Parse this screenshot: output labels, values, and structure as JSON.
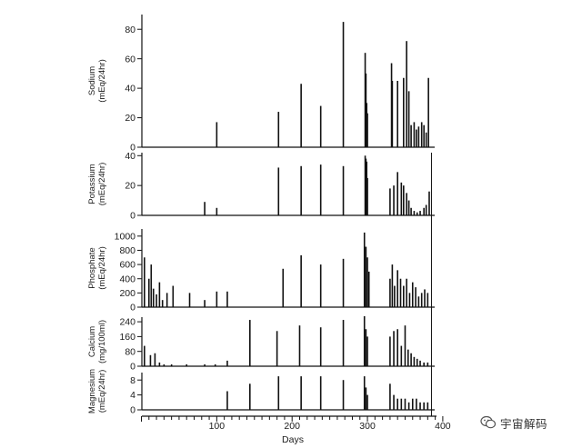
{
  "chart_data": {
    "type": "bar",
    "xlabel": "Days",
    "xlim": [
      0,
      400
    ],
    "x_ticks": [
      100,
      200,
      300,
      400
    ],
    "x_minor_tick_step": 10,
    "color": "#111111",
    "panels": [
      {
        "name": "sodium",
        "ylabel_lines": [
          "Sodium",
          "(mEq/24hr)"
        ],
        "ylim": [
          0,
          90
        ],
        "yticks": [
          0,
          20,
          40,
          60,
          80
        ],
        "x": [
          100,
          182,
          212,
          238,
          268,
          297,
          298,
          299,
          300,
          332,
          333,
          340,
          348,
          352,
          355,
          358,
          362,
          365,
          368,
          372,
          375,
          378,
          381
        ],
        "values": [
          17,
          24,
          43,
          28,
          85,
          64,
          50,
          30,
          23,
          57,
          45,
          45,
          47,
          72,
          38,
          15,
          17,
          12,
          14,
          17,
          15,
          10,
          47
        ]
      },
      {
        "name": "potassium",
        "ylabel_lines": [
          "Potassium",
          "(mEq/24hr)"
        ],
        "ylim": [
          0,
          42
        ],
        "yticks": [
          0,
          20,
          40
        ],
        "x": [
          84,
          100,
          182,
          212,
          238,
          268,
          297,
          298,
          299,
          300,
          330,
          335,
          340,
          345,
          348,
          352,
          355,
          358,
          362,
          366,
          370,
          375,
          378,
          382
        ],
        "values": [
          9,
          5,
          32,
          33,
          34,
          33,
          40,
          38,
          36,
          25,
          18,
          20,
          29,
          22,
          20,
          15,
          10,
          5,
          3,
          2,
          3,
          5,
          7,
          16
        ]
      },
      {
        "name": "phosphate",
        "ylabel_lines": [
          "Phosphate",
          "(mEq/24hr)"
        ],
        "ylim": [
          0,
          1100
        ],
        "yticks": [
          0,
          200,
          400,
          600,
          800,
          1000
        ],
        "x": [
          4,
          10,
          13,
          16,
          20,
          24,
          28,
          34,
          42,
          64,
          84,
          100,
          114,
          188,
          212,
          238,
          268,
          296,
          298,
          300,
          302,
          330,
          333,
          336,
          340,
          344,
          348,
          352,
          356,
          360,
          364,
          368,
          372,
          376,
          380
        ],
        "values": [
          700,
          400,
          600,
          260,
          180,
          350,
          100,
          200,
          300,
          200,
          100,
          220,
          220,
          540,
          730,
          600,
          680,
          1050,
          850,
          700,
          500,
          400,
          600,
          300,
          520,
          400,
          300,
          400,
          200,
          350,
          280,
          150,
          200,
          250,
          200
        ]
      },
      {
        "name": "calcium",
        "ylabel_lines": [
          "Calcium",
          "(mg/100ml)"
        ],
        "ylim": [
          0,
          265
        ],
        "yticks": [
          0,
          80,
          160,
          240
        ],
        "x": [
          4,
          12,
          18,
          24,
          30,
          40,
          60,
          84,
          98,
          114,
          144,
          180,
          210,
          238,
          268,
          296,
          298,
          300,
          330,
          335,
          340,
          345,
          350,
          354,
          358,
          362,
          366,
          370,
          375,
          380
        ],
        "values": [
          110,
          60,
          70,
          20,
          10,
          10,
          10,
          10,
          10,
          30,
          250,
          190,
          220,
          210,
          250,
          270,
          200,
          160,
          160,
          190,
          200,
          110,
          220,
          90,
          70,
          50,
          40,
          30,
          20,
          20
        ]
      },
      {
        "name": "magnesium",
        "ylabel_lines": [
          "Magnesium",
          "(mEq/24hr)"
        ],
        "ylim": [
          0,
          10
        ],
        "yticks": [
          0,
          4,
          8
        ],
        "x": [
          114,
          144,
          182,
          212,
          238,
          268,
          296,
          298,
          300,
          330,
          335,
          340,
          345,
          350,
          355,
          360,
          365,
          370,
          375,
          380
        ],
        "values": [
          5,
          7,
          9,
          9,
          9,
          8,
          9,
          6,
          4,
          7,
          4,
          3,
          3,
          3,
          2,
          3,
          3,
          2,
          2,
          2
        ]
      }
    ]
  },
  "watermark": {
    "text": "宇宙解码",
    "icon": "wechat-icon"
  }
}
